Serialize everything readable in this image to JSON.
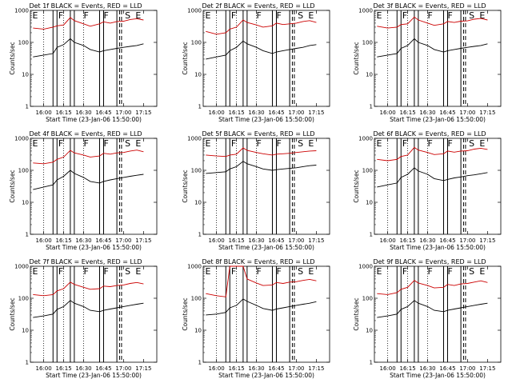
{
  "chart_data": {
    "type": "line",
    "yscale": "log",
    "ylim": [
      1,
      1000
    ],
    "yticks": [
      "1",
      "10",
      "100",
      "1000"
    ],
    "xticks": [
      "16:00",
      "16:15",
      "16:30",
      "16:45",
      "17:00",
      "17:15"
    ],
    "xlim_minutes_from_start": [
      0,
      95
    ],
    "tick_minutes": [
      10,
      25,
      40,
      55,
      70,
      85
    ],
    "xlabel": "Start Time (23-Jan-06 15:50:00)",
    "ylabel": "Counts/sec",
    "legend_text": "BLACK = Events, RED = LLD",
    "series_colors": {
      "events": "#000000",
      "lld": "#cc0000"
    },
    "solid_vlines_min": [
      17,
      20,
      30,
      33,
      52,
      55,
      65
    ],
    "dashed_vlines_min": [
      67,
      68.5
    ],
    "dotted_vlines_min": [
      10,
      25,
      40,
      55
    ],
    "markers": [
      {
        "text": "E",
        "min": 1.5
      },
      {
        "text": "F",
        "min": 21
      },
      {
        "text": "F",
        "min": 40
      },
      {
        "text": "F",
        "min": 55
      },
      {
        "text": "S",
        "min": 71
      },
      {
        "text": "E",
        "min": 79
      }
    ],
    "panels": [
      {
        "title": "Det 1f BLACK = Events, RED = LLD",
        "lld_x": [
          2,
          10,
          17,
          20,
          25,
          30,
          33,
          40,
          45,
          52,
          55,
          60,
          65,
          70,
          75,
          80,
          85
        ],
        "lld_y": [
          280,
          260,
          300,
          330,
          350,
          600,
          480,
          380,
          320,
          380,
          440,
          400,
          450,
          460,
          520,
          550,
          500
        ],
        "ev_x": [
          2,
          10,
          17,
          20,
          25,
          30,
          33,
          40,
          45,
          52,
          55,
          60,
          65,
          70,
          75,
          80,
          85
        ],
        "ev_y": [
          35,
          40,
          45,
          70,
          85,
          130,
          100,
          80,
          60,
          50,
          55,
          60,
          65,
          70,
          75,
          80,
          90
        ]
      },
      {
        "title": "Det 2f BLACK = Events, RED = LLD",
        "lld_x": [
          2,
          10,
          17,
          20,
          25,
          30,
          33,
          40,
          45,
          52,
          55,
          60,
          65,
          70,
          75,
          80,
          85
        ],
        "lld_y": [
          220,
          180,
          200,
          260,
          300,
          500,
          420,
          350,
          300,
          330,
          400,
          360,
          380,
          400,
          450,
          480,
          420
        ],
        "ev_x": [
          2,
          10,
          17,
          20,
          25,
          30,
          33,
          40,
          45,
          52,
          55,
          60,
          65,
          70,
          75,
          80,
          85
        ],
        "ev_y": [
          30,
          35,
          40,
          55,
          70,
          110,
          90,
          70,
          55,
          45,
          50,
          55,
          60,
          65,
          70,
          80,
          85
        ]
      },
      {
        "title": "Det 3f BLACK = Events, RED = LLD",
        "lld_x": [
          2,
          10,
          17,
          20,
          25,
          30,
          33,
          40,
          45,
          52,
          55,
          60,
          65,
          70,
          75,
          80,
          85
        ],
        "lld_y": [
          320,
          280,
          300,
          360,
          380,
          620,
          500,
          400,
          340,
          380,
          450,
          420,
          460,
          470,
          530,
          560,
          500
        ],
        "ev_x": [
          2,
          10,
          17,
          20,
          25,
          30,
          33,
          40,
          45,
          52,
          55,
          60,
          65,
          70,
          75,
          80,
          85
        ],
        "ev_y": [
          35,
          40,
          45,
          65,
          80,
          130,
          100,
          80,
          60,
          50,
          55,
          60,
          65,
          70,
          75,
          80,
          90
        ]
      },
      {
        "title": "Det 4f BLACK = Events, RED = LLD",
        "lld_x": [
          2,
          10,
          17,
          20,
          25,
          30,
          33,
          40,
          45,
          52,
          55,
          60,
          65,
          70,
          75,
          80,
          85
        ],
        "lld_y": [
          170,
          160,
          180,
          220,
          260,
          420,
          350,
          300,
          260,
          280,
          340,
          320,
          350,
          360,
          400,
          430,
          380
        ],
        "ev_x": [
          2,
          10,
          17,
          20,
          25,
          30,
          33,
          40,
          45,
          52,
          55,
          60,
          65,
          70,
          75,
          80,
          85
        ],
        "ev_y": [
          25,
          30,
          35,
          50,
          65,
          100,
          80,
          60,
          45,
          40,
          45,
          50,
          55,
          60,
          65,
          70,
          75
        ]
      },
      {
        "title": "Det 5f BLACK = Events, RED = LLD",
        "lld_x": [
          2,
          10,
          17,
          20,
          25,
          30,
          33,
          40,
          45,
          52,
          55,
          60,
          65,
          70,
          75,
          80,
          85
        ],
        "lld_y": [
          300,
          280,
          270,
          300,
          320,
          500,
          420,
          360,
          330,
          300,
          320,
          330,
          340,
          360,
          380,
          400,
          410
        ],
        "ev_x": [
          2,
          10,
          17,
          20,
          25,
          30,
          33,
          40,
          45,
          52,
          55,
          60,
          65,
          70,
          75,
          80,
          85
        ],
        "ev_y": [
          80,
          85,
          90,
          110,
          130,
          190,
          160,
          130,
          110,
          100,
          105,
          110,
          115,
          120,
          130,
          140,
          145
        ]
      },
      {
        "title": "Det 6f BLACK = Events, RED = LLD",
        "lld_x": [
          2,
          10,
          17,
          20,
          25,
          30,
          33,
          40,
          45,
          52,
          55,
          60,
          65,
          70,
          75,
          80,
          85
        ],
        "lld_y": [
          220,
          200,
          220,
          270,
          300,
          520,
          430,
          360,
          310,
          330,
          400,
          370,
          400,
          410,
          460,
          490,
          450
        ],
        "ev_x": [
          2,
          10,
          17,
          20,
          25,
          30,
          33,
          40,
          45,
          52,
          55,
          60,
          65,
          70,
          75,
          80,
          85
        ],
        "ev_y": [
          30,
          35,
          40,
          60,
          75,
          120,
          95,
          75,
          55,
          48,
          52,
          58,
          62,
          68,
          72,
          78,
          85
        ]
      },
      {
        "title": "Det 7f BLACK = Events, RED = LLD",
        "lld_x": [
          2,
          10,
          17,
          20,
          25,
          30,
          33,
          40,
          45,
          52,
          55,
          60,
          65,
          70,
          75,
          80,
          85
        ],
        "lld_y": [
          130,
          120,
          130,
          170,
          200,
          320,
          270,
          220,
          190,
          200,
          240,
          230,
          250,
          260,
          290,
          310,
          280
        ],
        "ev_x": [
          2,
          10,
          17,
          20,
          25,
          30,
          33,
          40,
          45,
          52,
          55,
          60,
          65,
          70,
          75,
          80,
          85
        ],
        "ev_y": [
          25,
          28,
          32,
          45,
          55,
          85,
          70,
          55,
          42,
          38,
          42,
          46,
          50,
          55,
          60,
          65,
          70
        ]
      },
      {
        "title": "Det 8f BLACK = Events, RED = LLD",
        "lld_x": [
          2,
          10,
          17,
          20,
          25,
          30,
          33,
          40,
          45,
          52,
          55,
          60,
          65,
          70,
          75,
          80,
          85
        ],
        "lld_y": [
          140,
          120,
          110,
          1000,
          1000,
          1000,
          400,
          300,
          250,
          260,
          310,
          290,
          320,
          330,
          360,
          390,
          350
        ],
        "ev_x": [
          2,
          10,
          17,
          20,
          25,
          30,
          33,
          40,
          45,
          52,
          55,
          60,
          65,
          70,
          75,
          80,
          85
        ],
        "ev_y": [
          30,
          32,
          36,
          50,
          60,
          95,
          80,
          60,
          48,
          42,
          46,
          50,
          55,
          60,
          65,
          70,
          78
        ]
      },
      {
        "title": "Det 9f BLACK = Events, RED = LLD",
        "lld_x": [
          2,
          10,
          17,
          20,
          25,
          30,
          33,
          40,
          45,
          52,
          55,
          60,
          65,
          70,
          75,
          80,
          85
        ],
        "lld_y": [
          140,
          130,
          150,
          190,
          220,
          360,
          300,
          250,
          210,
          220,
          270,
          250,
          280,
          290,
          320,
          350,
          310
        ],
        "ev_x": [
          2,
          10,
          17,
          20,
          25,
          30,
          33,
          40,
          45,
          52,
          55,
          60,
          65,
          70,
          75,
          80,
          85
        ],
        "ev_y": [
          25,
          28,
          32,
          45,
          55,
          85,
          70,
          55,
          42,
          38,
          42,
          46,
          50,
          55,
          60,
          65,
          70
        ]
      }
    ]
  }
}
